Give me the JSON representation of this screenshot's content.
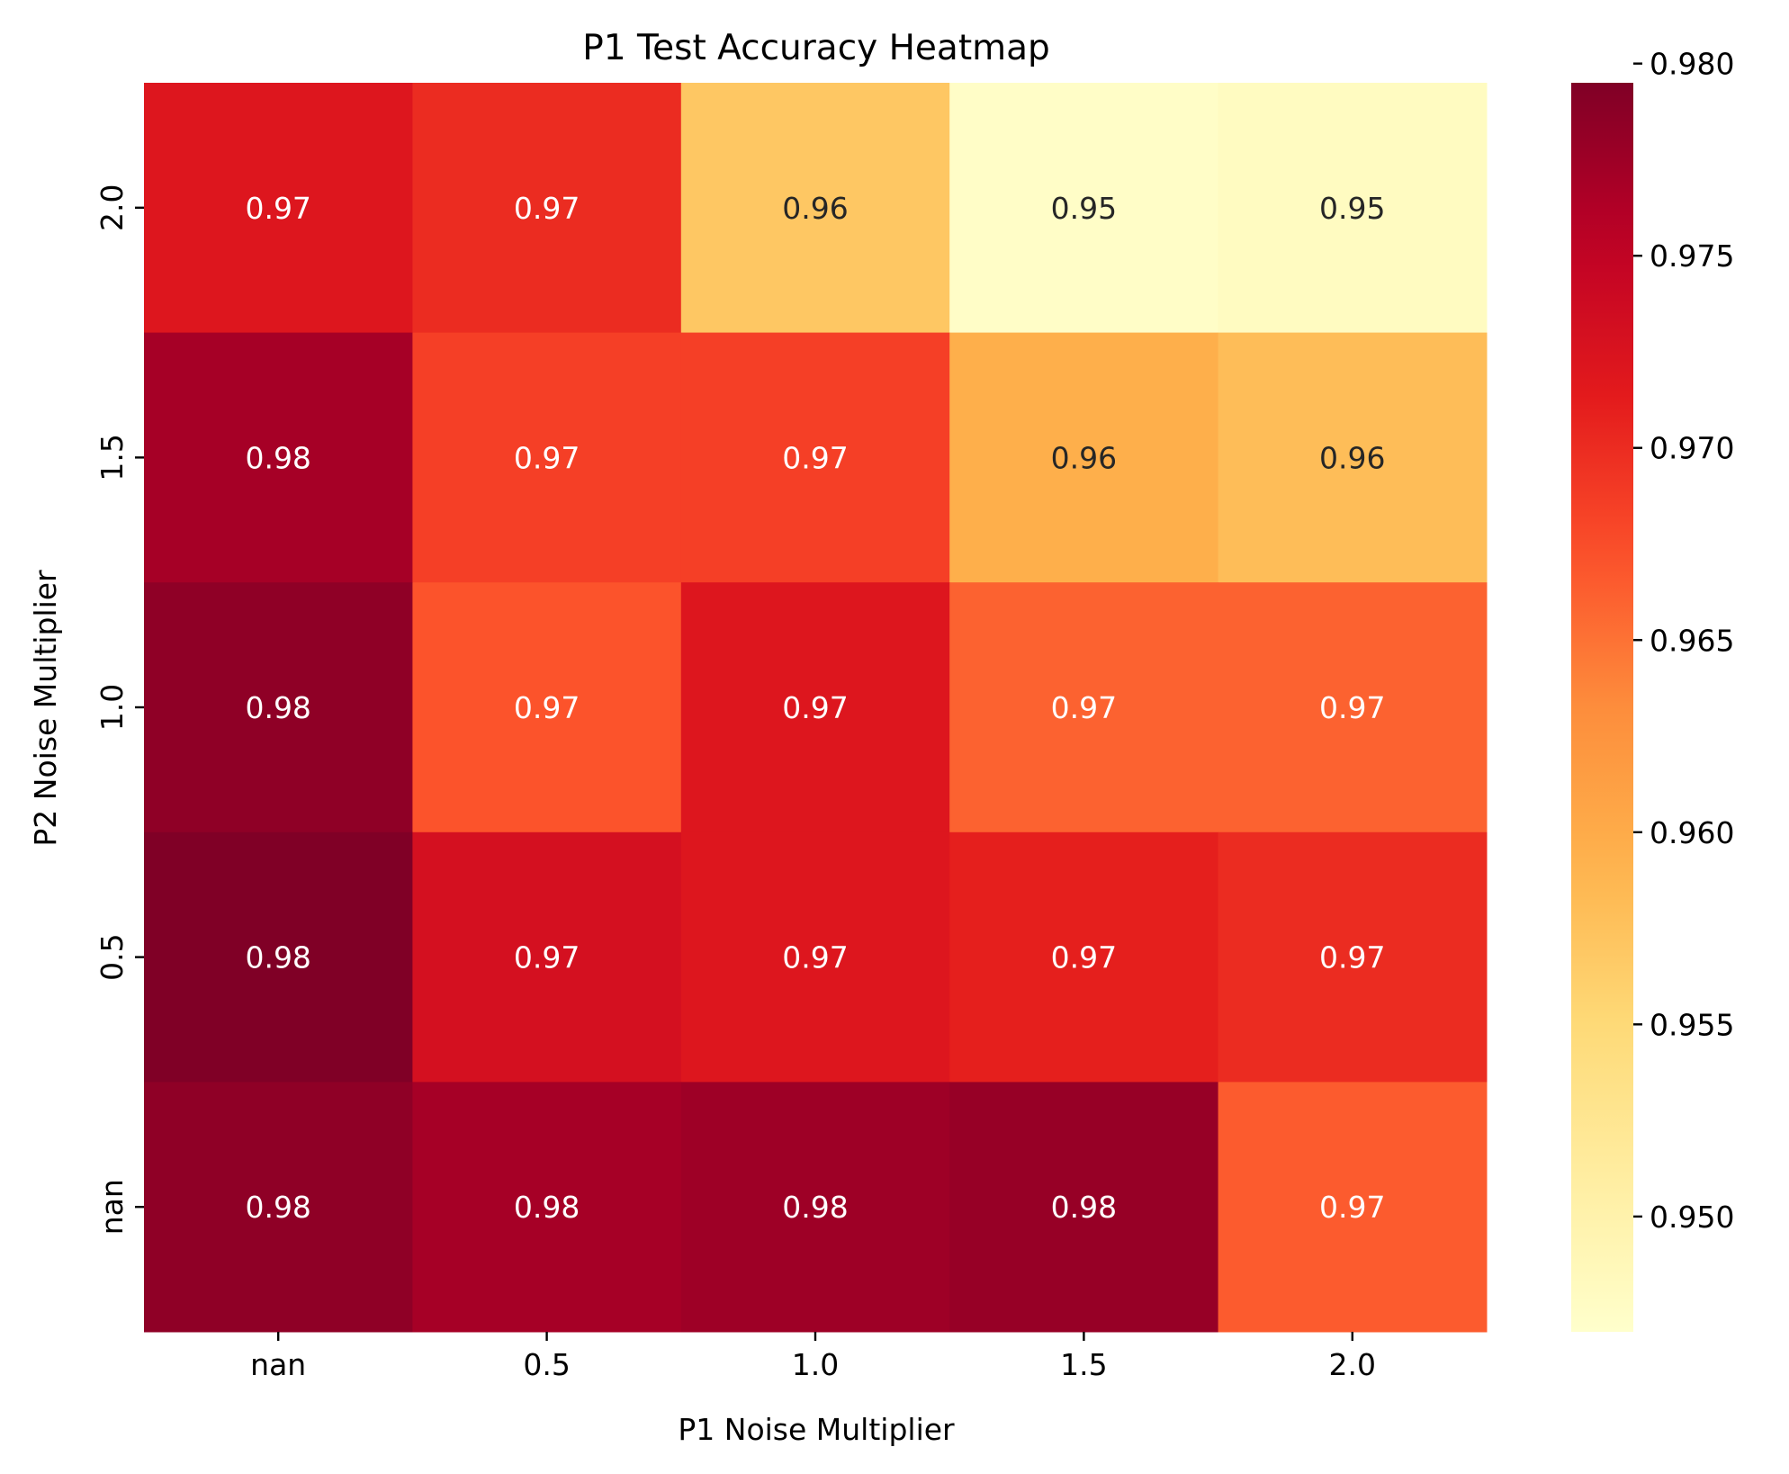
{
  "chart_data": {
    "type": "heatmap",
    "title": "P1 Test Accuracy Heatmap",
    "xlabel": "P1 Noise Multiplier",
    "ylabel": "P2 Noise Multiplier",
    "x_categories": [
      "nan",
      "0.5",
      "1.0",
      "1.5",
      "2.0"
    ],
    "y_categories": [
      "2.0",
      "1.5",
      "1.0",
      "0.5",
      "nan"
    ],
    "values": [
      [
        0.972,
        0.97,
        0.957,
        0.9475,
        0.948
      ],
      [
        0.977,
        0.9685,
        0.9685,
        0.9595,
        0.958
      ],
      [
        0.9785,
        0.967,
        0.972,
        0.966,
        0.966
      ],
      [
        0.9795,
        0.973,
        0.972,
        0.971,
        0.97
      ],
      [
        0.9785,
        0.977,
        0.9775,
        0.978,
        0.9665
      ]
    ],
    "labels": [
      [
        "0.97",
        "0.97",
        "0.96",
        "0.95",
        "0.95"
      ],
      [
        "0.98",
        "0.97",
        "0.97",
        "0.96",
        "0.96"
      ],
      [
        "0.98",
        "0.97",
        "0.97",
        "0.97",
        "0.97"
      ],
      [
        "0.98",
        "0.97",
        "0.97",
        "0.97",
        "0.97"
      ],
      [
        "0.98",
        "0.98",
        "0.98",
        "0.98",
        "0.97"
      ]
    ],
    "colorbar": {
      "min": 0.947,
      "max": 0.9795,
      "ticks": [
        "0.950",
        "0.955",
        "0.960",
        "0.965",
        "0.970",
        "0.975",
        "0.980"
      ],
      "colormap": "YlOrRd",
      "stops": [
        "#ffffcc",
        "#ffeda0",
        "#fed976",
        "#feb24c",
        "#fd8d3c",
        "#fc4e2a",
        "#e31a1c",
        "#bd0026",
        "#800026"
      ]
    }
  }
}
